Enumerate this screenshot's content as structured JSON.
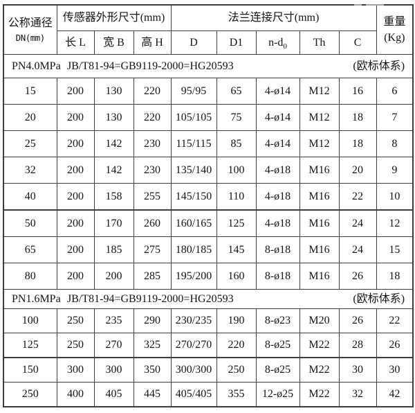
{
  "page": {
    "background": "#ffffff",
    "border_color": "#3c3c3c",
    "text_color": "#141414"
  },
  "table": {
    "header": {
      "dn_line1": "公称通径",
      "dn_line2": "DN(mm)",
      "sensor_group": "传感器外形尺寸(mm)",
      "flange_group": "法兰连接尺寸(mm)",
      "weight_line1": "重量",
      "weight_line2": "(Kg)",
      "col_length": "长 L",
      "col_width": "宽 B",
      "col_height": "高 H",
      "col_d": "D",
      "col_d1": "D1",
      "col_nd_base": "n-d",
      "col_nd_sub": "0",
      "col_th": "Th",
      "col_c": "C"
    },
    "sections": [
      {
        "pn_label": "PN4.0MPa",
        "standard": "JB/T81-94=GB9119-2000=HG20593",
        "note": "(欧标体系)",
        "rows": [
          [
            "15",
            "200",
            "130",
            "220",
            "95/95",
            "65",
            "4-ø14",
            "M12",
            "16",
            "6"
          ],
          [
            "20",
            "200",
            "130",
            "220",
            "105/105",
            "75",
            "4-ø14",
            "M12",
            "18",
            "7"
          ],
          [
            "25",
            "200",
            "142",
            "230",
            "115/115",
            "85",
            "4-ø14",
            "M12",
            "18",
            "8"
          ],
          [
            "32",
            "200",
            "142",
            "230",
            "135/140",
            "100",
            "4-ø18",
            "M16",
            "20",
            "9"
          ],
          [
            "40",
            "200",
            "158",
            "255",
            "145/150",
            "110",
            "4-ø18",
            "M16",
            "22",
            "10"
          ],
          [
            "50",
            "200",
            "170",
            "260",
            "160/165",
            "125",
            "4-ø18",
            "M16",
            "24",
            "12"
          ],
          [
            "65",
            "200",
            "185",
            "275",
            "180/185",
            "145",
            "8-ø18",
            "M16",
            "24",
            "15"
          ],
          [
            "80",
            "200",
            "200",
            "285",
            "195/200",
            "160",
            "8-ø18",
            "M16",
            "26",
            "18"
          ]
        ]
      },
      {
        "pn_label": "PN1.6MPa",
        "standard": "JB/T81-94=GB9119-2000=HG20593",
        "note": "(欧标体系)",
        "rows": [
          [
            "100",
            "250",
            "235",
            "290",
            "230/235",
            "190",
            "8-ø23",
            "M20",
            "26",
            "22"
          ],
          [
            "125",
            "250",
            "270",
            "325",
            "270/270",
            "220",
            "8-ø25",
            "M22",
            "28",
            "26"
          ],
          [
            "150",
            "300",
            "300",
            "350",
            "300/300",
            "250",
            "8-ø25",
            "M22",
            "30",
            "30"
          ],
          [
            "250",
            "400",
            "405",
            "445",
            "405/405",
            "355",
            "12-ø25",
            "M22",
            "32",
            "42"
          ]
        ]
      }
    ]
  }
}
